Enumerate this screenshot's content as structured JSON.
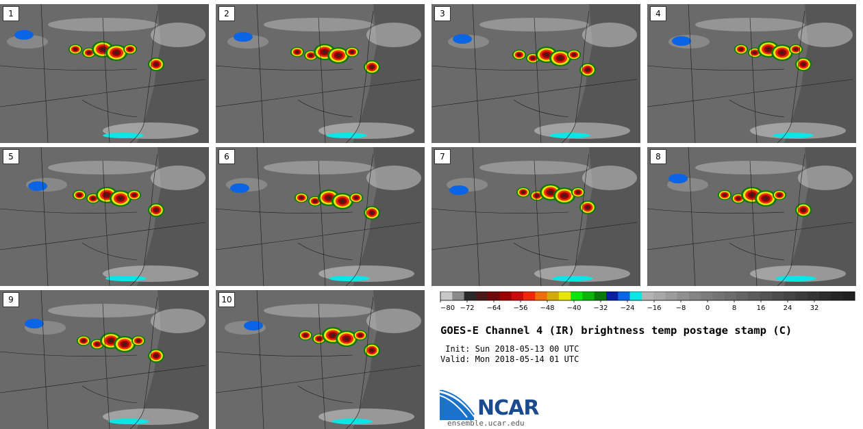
{
  "panels": [
    {
      "id": "1"
    },
    {
      "id": "2"
    },
    {
      "id": "3"
    },
    {
      "id": "4"
    },
    {
      "id": "5"
    },
    {
      "id": "6"
    },
    {
      "id": "7"
    },
    {
      "id": "8"
    },
    {
      "id": "9"
    },
    {
      "id": "10"
    }
  ],
  "colorbar": {
    "colors": [
      "#c8c8c8",
      "#8a8a8a",
      "#2a2a2a",
      "#4a1a1a",
      "#6e0a0a",
      "#9c0000",
      "#c80a0a",
      "#f0280a",
      "#f06e0a",
      "#d2aa0a",
      "#e6e60a",
      "#0ae60a",
      "#0ab40a",
      "#0a780a",
      "#0a1ea0",
      "#0a64e6",
      "#0ae6e6",
      "#b4b4b4",
      "#a8a8a8",
      "#9c9c9c",
      "#909090",
      "#848484",
      "#7c7c7c",
      "#747474",
      "#6c6c6c",
      "#646464",
      "#5c5c5c",
      "#545454",
      "#4c4c4c",
      "#444444",
      "#3c3c3c",
      "#343434",
      "#2c2c2c",
      "#262626",
      "#202020"
    ],
    "ticks": [
      "−80",
      "−72",
      "−64",
      "−56",
      "−48",
      "−40",
      "−32",
      "−24",
      "−16",
      "−8",
      "0",
      "8",
      "16",
      "24",
      "32"
    ]
  },
  "title": "GOES-E Channel 4 (IR) brightness temp postage stamp (C)",
  "init": " Init: Sun 2018-05-13 00 UTC",
  "valid": "Valid: Mon 2018-05-14 01 UTC",
  "logo_text": "NCAR",
  "site": "ensemble.ucar.edu"
}
